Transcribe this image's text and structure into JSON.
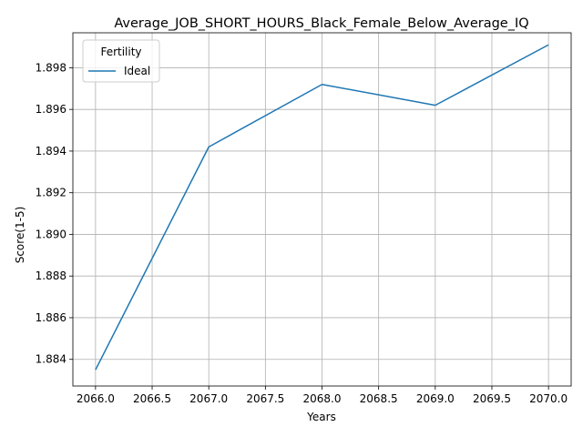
{
  "chart_data": {
    "type": "line",
    "title": "Average_JOB_SHORT_HOURS_Black_Female_Below_Average_IQ",
    "xlabel": "Years",
    "ylabel": "Score(1-5)",
    "x": [
      2066,
      2067,
      2068,
      2069,
      2070
    ],
    "series": [
      {
        "name": "Ideal",
        "values": [
          1.8835,
          1.8942,
          1.8972,
          1.8962,
          1.8991
        ],
        "color": "#1f77b4"
      }
    ],
    "xlim": [
      2065.8,
      2070.2
    ],
    "ylim": [
      1.88272,
      1.89968
    ],
    "xticks": [
      2066.0,
      2066.5,
      2067.0,
      2067.5,
      2068.0,
      2068.5,
      2069.0,
      2069.5,
      2070.0
    ],
    "xtick_labels": [
      "2066.0",
      "2066.5",
      "2067.0",
      "2067.5",
      "2068.0",
      "2068.5",
      "2069.0",
      "2069.5",
      "2070.0"
    ],
    "yticks": [
      1.884,
      1.886,
      1.888,
      1.89,
      1.892,
      1.894,
      1.896,
      1.898
    ],
    "ytick_labels": [
      "1.884",
      "1.886",
      "1.888",
      "1.890",
      "1.892",
      "1.894",
      "1.896",
      "1.898"
    ],
    "grid": true,
    "legend": {
      "title": "Fertility",
      "placement": "top-left"
    }
  }
}
